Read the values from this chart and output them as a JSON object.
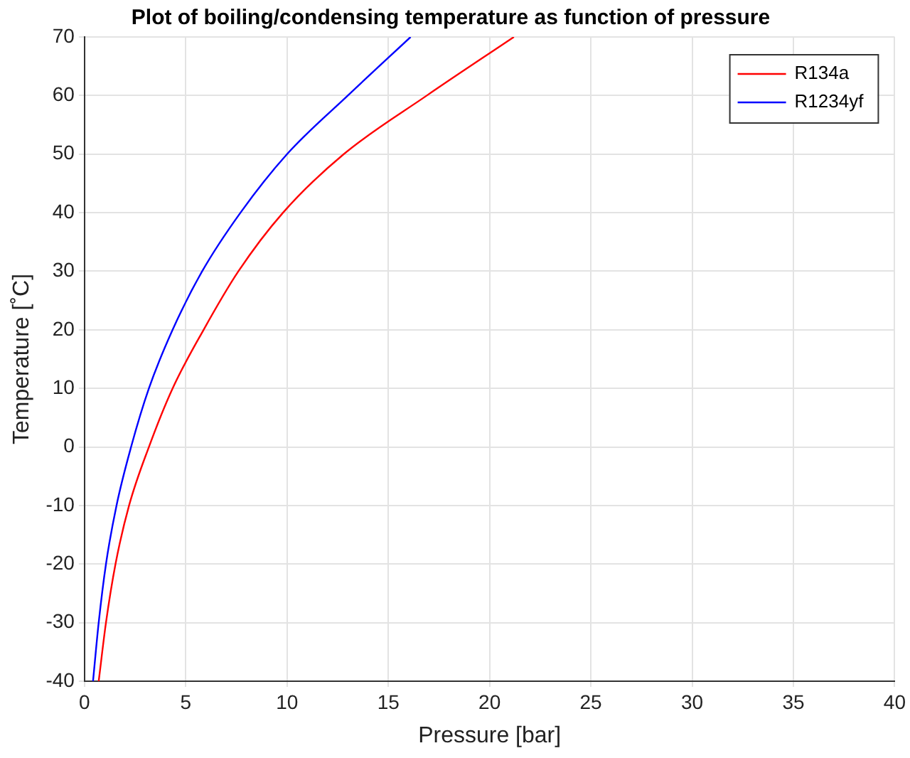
{
  "chart_data": {
    "type": "line",
    "title": "Plot of boiling/condensing temperature as function of pressure",
    "xlabel": "Pressure [bar]",
    "ylabel": "Temperature [˚C]",
    "xlim": [
      0,
      40
    ],
    "xticks": [
      0,
      5,
      10,
      15,
      20,
      25,
      30,
      35,
      40
    ],
    "ylim": [
      -40,
      70
    ],
    "yticks": [
      -40,
      -30,
      -20,
      -10,
      0,
      10,
      20,
      30,
      40,
      50,
      60,
      70
    ],
    "grid": true,
    "legend": "top right",
    "marker": "none",
    "line_style": "solid",
    "series": [
      {
        "name": "R134a",
        "color": "#ff0000",
        "x": [
          0.7,
          1.06,
          1.53,
          2.2,
          3.18,
          4.35,
          5.88,
          7.6,
          9.8,
          12.8,
          16.9,
          21.2
        ],
        "values": [
          -40,
          -30,
          -20,
          -10,
          0,
          10,
          20,
          30,
          40,
          50,
          60,
          70
        ]
      },
      {
        "name": "R1234yf",
        "color": "#0000ff",
        "x": [
          0.42,
          0.7,
          1.06,
          1.58,
          2.3,
          3.18,
          4.35,
          5.81,
          7.7,
          10.0,
          13.0,
          16.1
        ],
        "values": [
          -40,
          -30,
          -20,
          -10,
          0,
          10,
          20,
          30,
          40,
          50,
          60,
          70
        ]
      }
    ]
  }
}
